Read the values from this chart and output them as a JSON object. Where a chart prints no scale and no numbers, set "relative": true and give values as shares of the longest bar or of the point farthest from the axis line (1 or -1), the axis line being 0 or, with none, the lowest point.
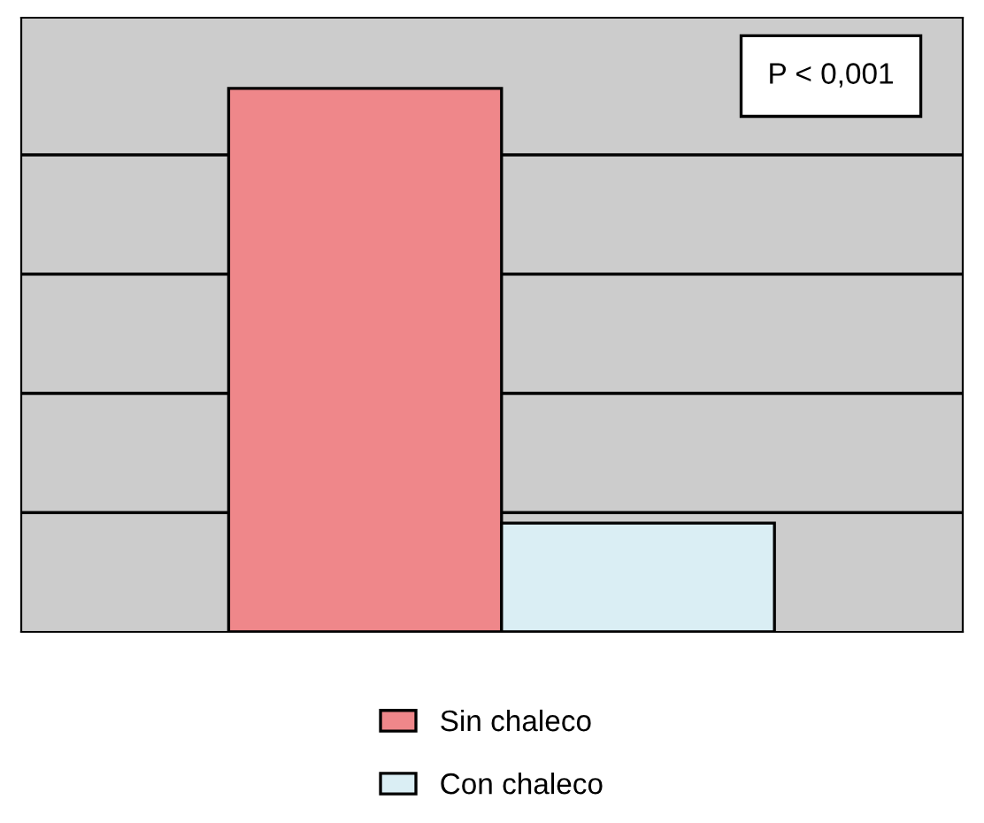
{
  "chart_data": {
    "type": "bar",
    "relative": true,
    "categories": [
      null
    ],
    "series": [
      {
        "name": "Sin chaleco",
        "color": "#ef878a",
        "values": [
          1
        ]
      },
      {
        "name": "Con chaleco",
        "color": "#daeef4",
        "values": [
          0.2
        ]
      }
    ],
    "annotations": [
      "P < 0,001"
    ],
    "grid": "y",
    "legend": "bottom"
  }
}
